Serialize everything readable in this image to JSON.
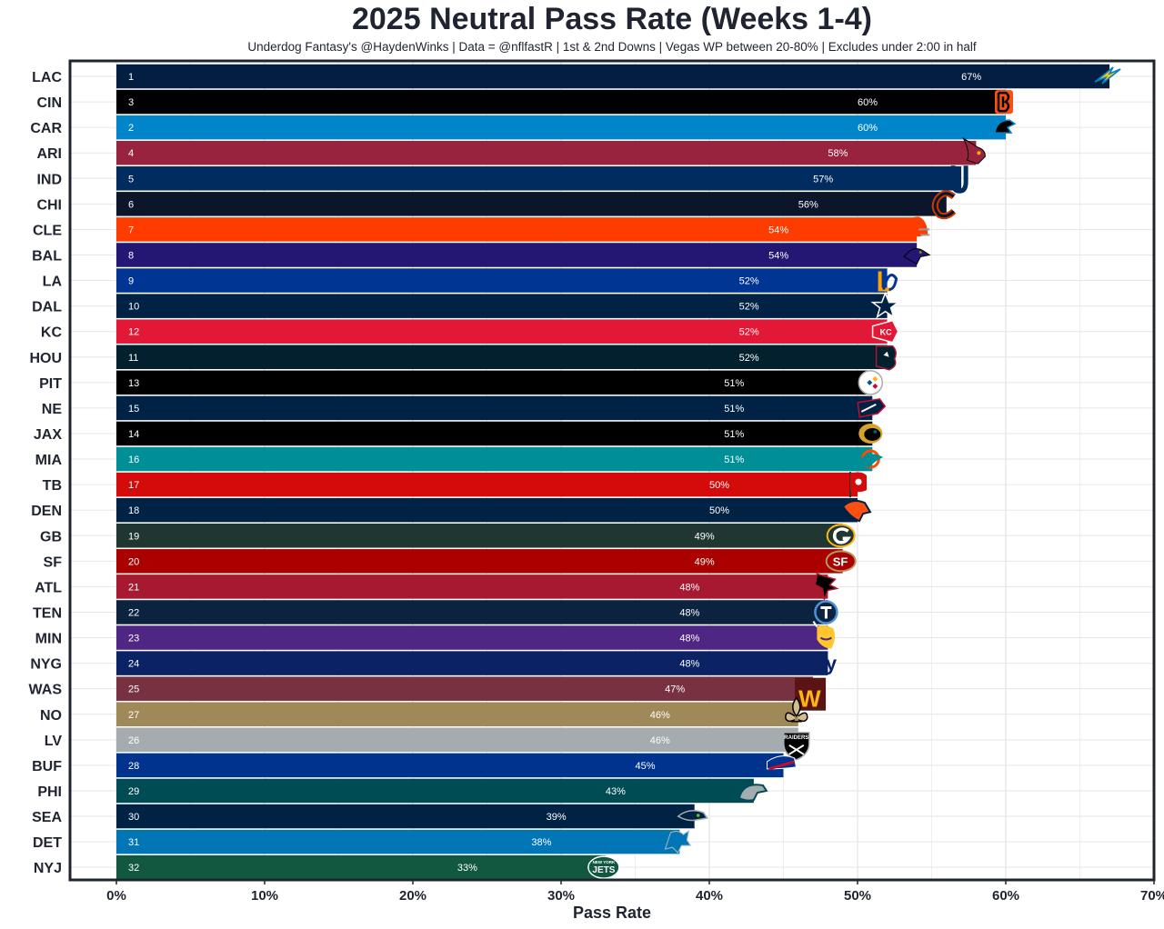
{
  "chart_data": {
    "type": "bar",
    "orientation": "horizontal",
    "title": "2025 Neutral Pass Rate (Weeks 1-4)",
    "subtitle": "Underdog Fantasy's @HaydenWinks | Data = @nflfastR | 1st & 2nd Downs | Vegas WP between 20-80% | Excludes under 2:00 in half",
    "xlabel": "Pass Rate",
    "ylabel": "",
    "xlim": [
      0,
      70
    ],
    "x_ticks": [
      "0%",
      "10%",
      "20%",
      "30%",
      "40%",
      "50%",
      "60%",
      "70%"
    ],
    "grid": true,
    "bars": [
      {
        "team": "LAC",
        "rank": "1",
        "value": 67,
        "label": "67%",
        "color": "#041e42",
        "logo": "bolt-logo-icon"
      },
      {
        "team": "CIN",
        "rank": "3",
        "value": 60,
        "label": "60%",
        "color": "#000000",
        "logo": "bengals-logo-icon"
      },
      {
        "team": "CAR",
        "rank": "2",
        "value": 60,
        "label": "60%",
        "color": "#0085ca",
        "logo": "panther-logo-icon"
      },
      {
        "team": "ARI",
        "rank": "4",
        "value": 58,
        "label": "58%",
        "color": "#97233f",
        "logo": "cardinal-logo-icon"
      },
      {
        "team": "IND",
        "rank": "5",
        "value": 57,
        "label": "57%",
        "color": "#002c5f",
        "logo": "horseshoe-logo-icon"
      },
      {
        "team": "CHI",
        "rank": "6",
        "value": 56,
        "label": "56%",
        "color": "#0b162a",
        "logo": "bears-c-logo-icon"
      },
      {
        "team": "CLE",
        "rank": "7",
        "value": 54,
        "label": "54%",
        "color": "#ff3c00",
        "logo": "helmet-logo-icon"
      },
      {
        "team": "BAL",
        "rank": "8",
        "value": 54,
        "label": "54%",
        "color": "#241773",
        "logo": "raven-logo-icon"
      },
      {
        "team": "LA",
        "rank": "9",
        "value": 52,
        "label": "52%",
        "color": "#003594",
        "logo": "rams-logo-icon"
      },
      {
        "team": "DAL",
        "rank": "10",
        "value": 52,
        "label": "52%",
        "color": "#002244",
        "logo": "star-logo-icon"
      },
      {
        "team": "KC",
        "rank": "12",
        "value": 52,
        "label": "52%",
        "color": "#e31837",
        "logo": "arrowhead-logo-icon"
      },
      {
        "team": "HOU",
        "rank": "11",
        "value": 52,
        "label": "52%",
        "color": "#03202f",
        "logo": "bull-logo-icon"
      },
      {
        "team": "PIT",
        "rank": "13",
        "value": 51,
        "label": "51%",
        "color": "#000000",
        "logo": "steelers-logo-icon"
      },
      {
        "team": "NE",
        "rank": "15",
        "value": 51,
        "label": "51%",
        "color": "#002244",
        "logo": "patriot-logo-icon"
      },
      {
        "team": "JAX",
        "rank": "14",
        "value": 51,
        "label": "51%",
        "color": "#000000",
        "logo": "jaguar-logo-icon"
      },
      {
        "team": "MIA",
        "rank": "16",
        "value": 51,
        "label": "51%",
        "color": "#008e97",
        "logo": "dolphin-logo-icon"
      },
      {
        "team": "TB",
        "rank": "17",
        "value": 50,
        "label": "50%",
        "color": "#d50a0a",
        "logo": "flag-logo-icon"
      },
      {
        "team": "DEN",
        "rank": "18",
        "value": 50,
        "label": "50%",
        "color": "#002244",
        "logo": "bronco-logo-icon"
      },
      {
        "team": "GB",
        "rank": "19",
        "value": 49,
        "label": "49%",
        "color": "#203731",
        "logo": "g-logo-icon"
      },
      {
        "team": "SF",
        "rank": "20",
        "value": 49,
        "label": "49%",
        "color": "#aa0000",
        "logo": "sf-logo-icon"
      },
      {
        "team": "ATL",
        "rank": "21",
        "value": 48,
        "label": "48%",
        "color": "#a71930",
        "logo": "falcon-logo-icon"
      },
      {
        "team": "TEN",
        "rank": "22",
        "value": 48,
        "label": "48%",
        "color": "#0c2340",
        "logo": "titan-logo-icon"
      },
      {
        "team": "MIN",
        "rank": "23",
        "value": 48,
        "label": "48%",
        "color": "#4f2683",
        "logo": "viking-logo-icon"
      },
      {
        "team": "NYG",
        "rank": "24",
        "value": 48,
        "label": "48%",
        "color": "#0b2265",
        "logo": "ny-logo-icon"
      },
      {
        "team": "WAS",
        "rank": "25",
        "value": 47,
        "label": "47%",
        "color": "#773141",
        "logo": "w-logo-icon"
      },
      {
        "team": "NO",
        "rank": "27",
        "value": 46,
        "label": "46%",
        "color": "#9f8958",
        "logo": "fleur-de-lis-logo-icon"
      },
      {
        "team": "LV",
        "rank": "26",
        "value": 46,
        "label": "46%",
        "color": "#a5acaf",
        "logo": "raiders-shield-logo-icon"
      },
      {
        "team": "BUF",
        "rank": "28",
        "value": 45,
        "label": "45%",
        "color": "#00338d",
        "logo": "buffalo-logo-icon"
      },
      {
        "team": "PHI",
        "rank": "29",
        "value": 43,
        "label": "43%",
        "color": "#004c54",
        "logo": "eagle-logo-icon"
      },
      {
        "team": "SEA",
        "rank": "30",
        "value": 39,
        "label": "39%",
        "color": "#002244",
        "logo": "seahawk-logo-icon"
      },
      {
        "team": "DET",
        "rank": "31",
        "value": 38,
        "label": "38%",
        "color": "#0076b6",
        "logo": "lion-logo-icon"
      },
      {
        "team": "NYJ",
        "rank": "32",
        "value": 33,
        "label": "33%",
        "color": "#125740",
        "logo": "jets-logo-icon"
      }
    ],
    "logo_texts": {
      "raiders": "RAIDERS",
      "jets": "JETS",
      "steelers": "Steelers",
      "nyjets_small": "NEW YORK"
    }
  }
}
